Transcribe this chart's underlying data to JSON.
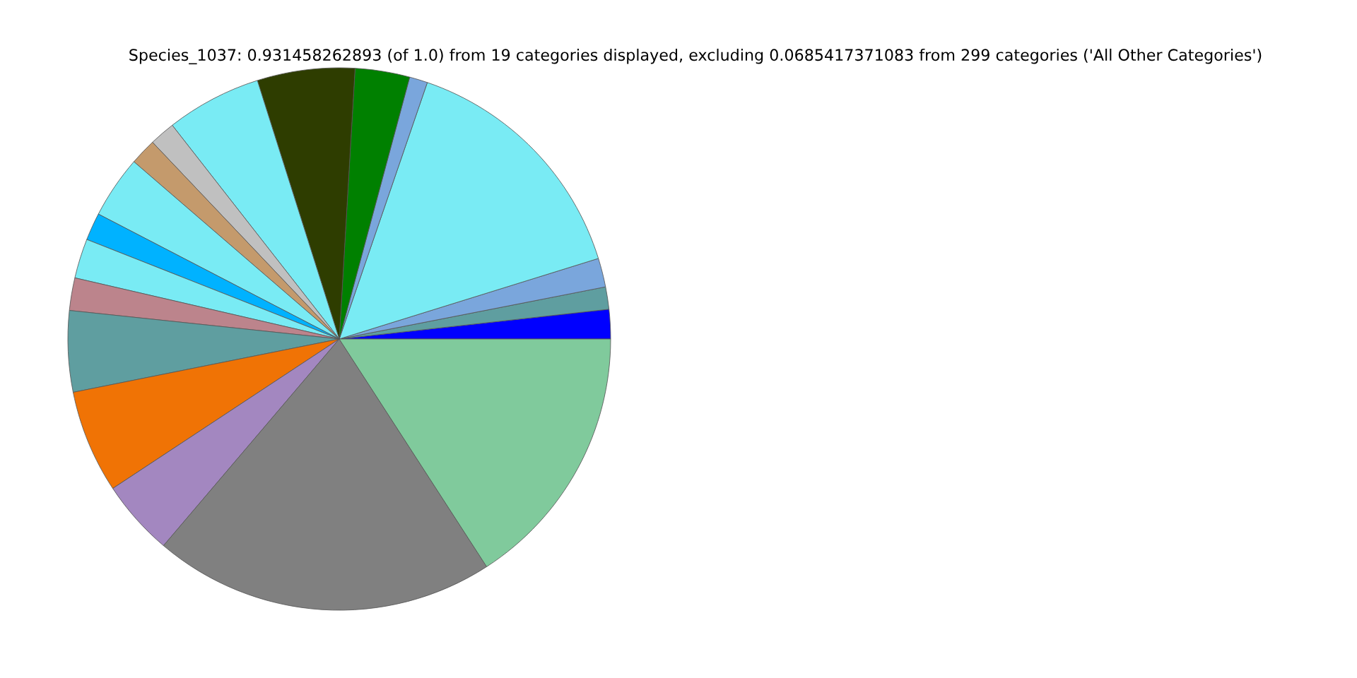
{
  "chart_data": {
    "type": "pie",
    "title": "Species_1037: 0.931458262893 (of 1.0) from 19 categories displayed, excluding 0.0685417371083 from 299 categories ('All Other Categories')",
    "categories": [
      null,
      null,
      null,
      null,
      null,
      null,
      null,
      null,
      null,
      null,
      null,
      null,
      null,
      null,
      null,
      null,
      null,
      null,
      null
    ],
    "values": [
      1.75,
      1.33,
      1.72,
      14.94,
      1.08,
      3.25,
      5.81,
      5.67,
      1.53,
      1.58,
      3.72,
      1.64,
      2.36,
      1.94,
      4.83,
      6.14,
      4.5,
      20.35,
      15.86
    ],
    "colors": [
      "#0000ff",
      "#5f9ea0",
      "#7aa6dc",
      "#79ebf4",
      "#7aa6dc",
      "#008000",
      "#2e3d00",
      "#79ebf4",
      "#c0c0c0",
      "#c49a6c",
      "#79ebf4",
      "#00b2ff",
      "#79ebf4",
      "#bc848c",
      "#5f9ea0",
      "#f07305",
      "#a387c0",
      "#808080",
      "#80ca9c"
    ]
  }
}
